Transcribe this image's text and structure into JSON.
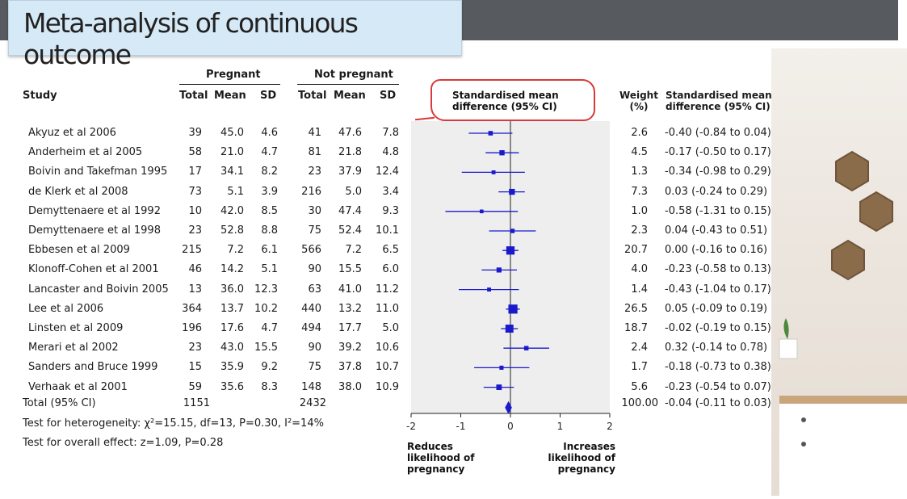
{
  "slide": {
    "title": "Meta-analysis of continuous outcome"
  },
  "table": {
    "group_headers": {
      "pregnant": "Pregnant",
      "not_pregnant": "Not pregnant"
    },
    "col_headers": {
      "study": "Study",
      "p_total": "Total",
      "p_mean": "Mean",
      "p_sd": "SD",
      "n_total": "Total",
      "n_mean": "Mean",
      "n_sd": "SD",
      "weight": "Weight (%)",
      "smd": "Standardised mean difference (95% CI)"
    },
    "rows": [
      {
        "study": "Akyuz et al 2006",
        "pt": "39",
        "pm": "45.0",
        "ps": "4.6",
        "nt": "41",
        "nm": "47.6",
        "ns": "7.8",
        "w": "2.6",
        "ci": "-0.40 (-0.84 to 0.04)",
        "smd": -0.4,
        "lo": -0.84,
        "hi": 0.04,
        "wt": 2.6
      },
      {
        "study": "Anderheim et al 2005",
        "pt": "58",
        "pm": "21.0",
        "ps": "4.7",
        "nt": "81",
        "nm": "21.8",
        "ns": "4.8",
        "w": "4.5",
        "ci": "-0.17 (-0.50 to 0.17)",
        "smd": -0.17,
        "lo": -0.5,
        "hi": 0.17,
        "wt": 4.5
      },
      {
        "study": "Boivin and Takefman 1995",
        "pt": "17",
        "pm": "34.1",
        "ps": "8.2",
        "nt": "23",
        "nm": "37.9",
        "ns": "12.4",
        "w": "1.3",
        "ci": "-0.34 (-0.98 to 0.29)",
        "smd": -0.34,
        "lo": -0.98,
        "hi": 0.29,
        "wt": 1.3
      },
      {
        "study": "de Klerk et al 2008",
        "pt": "73",
        "pm": "5.1",
        "ps": "3.9",
        "nt": "216",
        "nm": "5.0",
        "ns": "3.4",
        "w": "7.3",
        "ci": "0.03 (-0.24 to 0.29)",
        "smd": 0.03,
        "lo": -0.24,
        "hi": 0.29,
        "wt": 7.3
      },
      {
        "study": "Demyttenaere et al 1992",
        "pt": "10",
        "pm": "42.0",
        "ps": "8.5",
        "nt": "30",
        "nm": "47.4",
        "ns": "9.3",
        "w": "1.0",
        "ci": "-0.58 (-1.31 to 0.15)",
        "smd": -0.58,
        "lo": -1.31,
        "hi": 0.15,
        "wt": 1.0
      },
      {
        "study": "Demyttenaere et al 1998",
        "pt": "23",
        "pm": "52.8",
        "ps": "8.8",
        "nt": "75",
        "nm": "52.4",
        "ns": "10.1",
        "w": "2.3",
        "ci": "0.04 (-0.43 to 0.51)",
        "smd": 0.04,
        "lo": -0.43,
        "hi": 0.51,
        "wt": 2.3
      },
      {
        "study": "Ebbesen et al 2009",
        "pt": "215",
        "pm": "7.2",
        "ps": "6.1",
        "nt": "566",
        "nm": "7.2",
        "ns": "6.5",
        "w": "20.7",
        "ci": "0.00 (-0.16 to 0.16)",
        "smd": 0.0,
        "lo": -0.16,
        "hi": 0.16,
        "wt": 20.7
      },
      {
        "study": "Klonoff-Cohen et al 2001",
        "pt": "46",
        "pm": "14.2",
        "ps": "5.1",
        "nt": "90",
        "nm": "15.5",
        "ns": "6.0",
        "w": "4.0",
        "ci": "-0.23 (-0.58 to 0.13)",
        "smd": -0.23,
        "lo": -0.58,
        "hi": 0.13,
        "wt": 4.0
      },
      {
        "study": "Lancaster and Boivin 2005",
        "pt": "13",
        "pm": "36.0",
        "ps": "12.3",
        "nt": "63",
        "nm": "41.0",
        "ns": "11.2",
        "w": "1.4",
        "ci": "-0.43 (-1.04 to 0.17)",
        "smd": -0.43,
        "lo": -1.04,
        "hi": 0.17,
        "wt": 1.4
      },
      {
        "study": "Lee et al 2006",
        "pt": "364",
        "pm": "13.7",
        "ps": "10.2",
        "nt": "440",
        "nm": "13.2",
        "ns": "11.0",
        "w": "26.5",
        "ci": "0.05 (-0.09 to 0.19)",
        "smd": 0.05,
        "lo": -0.09,
        "hi": 0.19,
        "wt": 26.5
      },
      {
        "study": "Linsten et al 2009",
        "pt": "196",
        "pm": "17.6",
        "ps": "4.7",
        "nt": "494",
        "nm": "17.7",
        "ns": "5.0",
        "w": "18.7",
        "ci": "-0.02 (-0.19 to 0.15)",
        "smd": -0.02,
        "lo": -0.19,
        "hi": 0.15,
        "wt": 18.7
      },
      {
        "study": "Merari et al 2002",
        "pt": "23",
        "pm": "43.0",
        "ps": "15.5",
        "nt": "90",
        "nm": "39.2",
        "ns": "10.6",
        "w": "2.4",
        "ci": "0.32 (-0.14 to 0.78)",
        "smd": 0.32,
        "lo": -0.14,
        "hi": 0.78,
        "wt": 2.4
      },
      {
        "study": "Sanders and Bruce 1999",
        "pt": "15",
        "pm": "35.9",
        "ps": "9.2",
        "nt": "75",
        "nm": "37.8",
        "ns": "10.7",
        "w": "1.7",
        "ci": "-0.18 (-0.73 to 0.38)",
        "smd": -0.18,
        "lo": -0.73,
        "hi": 0.38,
        "wt": 1.7
      },
      {
        "study": "Verhaak et al 2001",
        "pt": "59",
        "pm": "35.6",
        "ps": "8.3",
        "nt": "148",
        "nm": "38.0",
        "ns": "10.9",
        "w": "5.6",
        "ci": "-0.23 (-0.54 to 0.07)",
        "smd": -0.23,
        "lo": -0.54,
        "hi": 0.07,
        "wt": 5.6
      }
    ],
    "total": {
      "label": "Total (95% CI)",
      "pt": "1151",
      "nt": "2432",
      "w": "100.00",
      "ci": "-0.04 (-0.11 to 0.03)",
      "smd": -0.04,
      "lo": -0.11,
      "hi": 0.03
    },
    "heterogeneity": "Test for heterogeneity: χ²=15.15, df=13, P=0.30, I²=14%",
    "overall_effect": "Test for overall effect: z=1.09, P=0.28"
  },
  "chart_data": {
    "type": "scatter",
    "title": "Standardised mean difference (95% CI)",
    "xlim": [
      -2,
      2
    ],
    "x_ticks": [
      "-2",
      "-1",
      "0",
      "1",
      "2"
    ],
    "left_caption": "Reduces likelihood of pregnancy",
    "right_caption": "Increases likelihood of pregnancy",
    "marker_color": "#1a1acc",
    "plot_bg": "#eeeeee"
  },
  "annotation": {
    "color": "#d83a3a"
  }
}
